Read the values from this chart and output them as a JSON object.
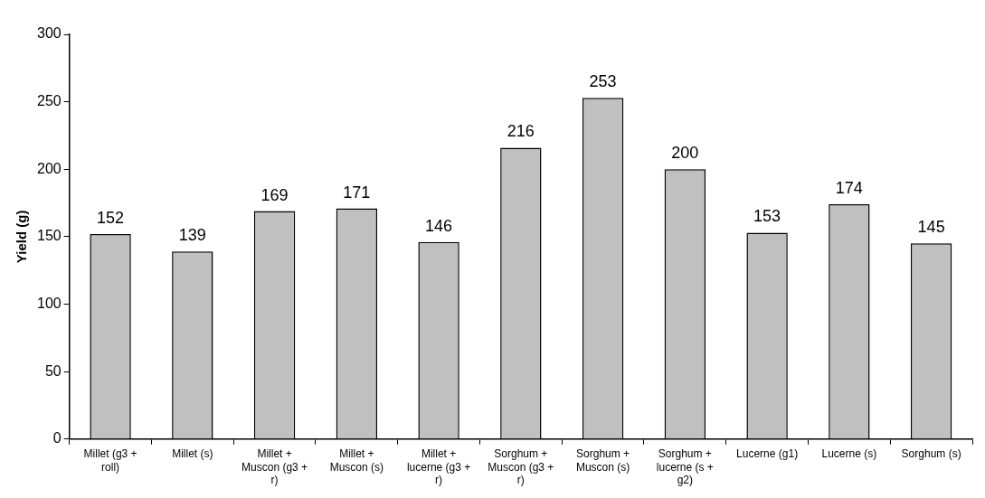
{
  "chart_data": {
    "type": "bar",
    "ylabel": "Yield (g)",
    "categories": [
      "Millet (g3 + roll)",
      "Millet (s)",
      "Millet + Muscon (g3 + r)",
      "Millet + Muscon (s)",
      "Millet + lucerne (g3 + r)",
      "Sorghum + Muscon (g3 + r)",
      "Sorghum + Muscon (s)",
      "Sorghum + lucerne (s + g2)",
      "Lucerne (g1)",
      "Lucerne (s)",
      "Sorghum (s)"
    ],
    "values": [
      152,
      139,
      169,
      171,
      146,
      216,
      253,
      200,
      153,
      174,
      145
    ],
    "color": "#c0c0c0",
    "ylim": [
      0,
      300
    ],
    "yticks": [
      0,
      50,
      100,
      150,
      200,
      250,
      300
    ],
    "grid": false,
    "legend": false,
    "data_labels": true
  }
}
